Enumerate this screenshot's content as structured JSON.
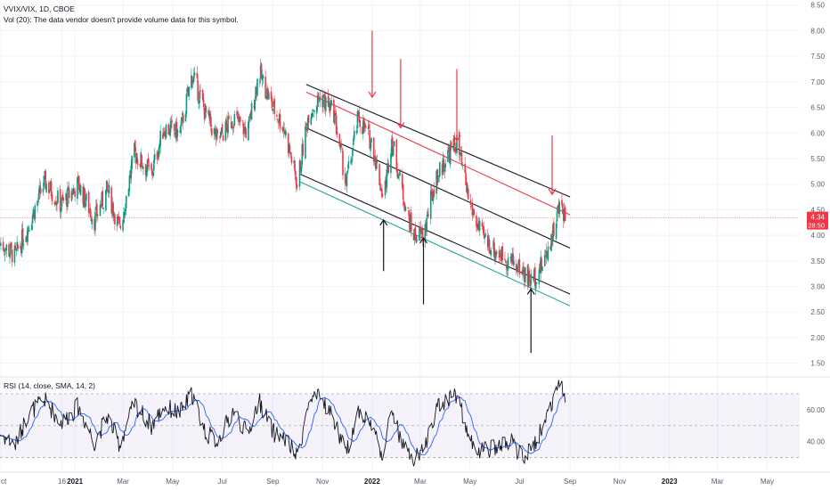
{
  "legend": {
    "symbol": "VVIX/VIX, 1D, CBOE",
    "volume_note": "Vol (20): The data vendor doesn't provide volume data for this symbol.",
    "rsi_label": "RSI (14, close, SMA, 14, 2)"
  },
  "price_badge": {
    "value": "4.34",
    "countdown": "28:50",
    "color": "#f23645"
  },
  "colors": {
    "up": "#089981",
    "down": "#f23645",
    "rsi": "#131722",
    "rsi_ma": "#2962ff",
    "channel": "#131722",
    "channel_red": "#f23645",
    "channel_green": "#26a69a",
    "arrow_red": "#f23645",
    "arrow_black": "#131722",
    "rsi_band": "#7e57c2"
  },
  "chart_data": [
    {
      "type": "candlestick",
      "ylim": [
        1.25,
        8.6
      ],
      "y_ticks": [
        "1.50",
        "2.00",
        "2.50",
        "3.00",
        "3.50",
        "4.00",
        "4.50",
        "5.00",
        "5.50",
        "6.00",
        "6.50",
        "7.00",
        "7.50",
        "8.00",
        "8.50"
      ],
      "y_tick_values": [
        1.5,
        2.0,
        2.5,
        3.0,
        3.5,
        4.0,
        4.5,
        5.0,
        5.5,
        6.0,
        6.5,
        7.0,
        7.5,
        8.0,
        8.5
      ],
      "last_value": 4.34,
      "x_range": [
        "2020-10-01",
        "2023-06-10"
      ],
      "x_ticks": [
        {
          "date": "2020-10-01",
          "label": "ct"
        },
        {
          "date": "2020-12-16",
          "label": "16"
        },
        {
          "date": "2021-01-01",
          "label": "2021",
          "bold": true
        },
        {
          "date": "2021-03-01",
          "label": "Mar"
        },
        {
          "date": "2021-05-01",
          "label": "May"
        },
        {
          "date": "2021-07-01",
          "label": "Jul"
        },
        {
          "date": "2021-09-01",
          "label": "Sep"
        },
        {
          "date": "2021-11-01",
          "label": "Nov"
        },
        {
          "date": "2022-01-01",
          "label": "2022",
          "bold": true
        },
        {
          "date": "2022-03-01",
          "label": "Mar"
        },
        {
          "date": "2022-05-01",
          "label": "May"
        },
        {
          "date": "2022-07-01",
          "label": "Jul"
        },
        {
          "date": "2022-09-01",
          "label": "Sep"
        },
        {
          "date": "2022-11-01",
          "label": "Nov"
        },
        {
          "date": "2023-01-01",
          "label": "2023",
          "bold": true
        },
        {
          "date": "2023-03-01",
          "label": "Mar"
        },
        {
          "date": "2023-05-01",
          "label": "May"
        }
      ],
      "anchors": [
        [
          "2020-10-01",
          3.85
        ],
        [
          "2020-10-20",
          3.6
        ],
        [
          "2020-11-05",
          4.2
        ],
        [
          "2020-11-25",
          5.05
        ],
        [
          "2020-12-15",
          4.6
        ],
        [
          "2021-01-05",
          5.0
        ],
        [
          "2021-01-25",
          4.3
        ],
        [
          "2021-02-10",
          4.9
        ],
        [
          "2021-02-25",
          4.1
        ],
        [
          "2021-03-15",
          5.6
        ],
        [
          "2021-04-05",
          5.2
        ],
        [
          "2021-04-20",
          6.1
        ],
        [
          "2021-05-10",
          6.0
        ],
        [
          "2021-05-25",
          7.15
        ],
        [
          "2021-06-10",
          6.4
        ],
        [
          "2021-06-25",
          5.85
        ],
        [
          "2021-07-15",
          6.3
        ],
        [
          "2021-08-01",
          6.0
        ],
        [
          "2021-08-15",
          7.2
        ],
        [
          "2021-09-01",
          6.5
        ],
        [
          "2021-09-15",
          6.1
        ],
        [
          "2021-10-01",
          5.0
        ],
        [
          "2021-10-15",
          6.4
        ],
        [
          "2021-10-30",
          6.7
        ],
        [
          "2021-11-15",
          6.4
        ],
        [
          "2021-11-30",
          5.0
        ],
        [
          "2021-12-15",
          6.3
        ],
        [
          "2022-01-01",
          5.8
        ],
        [
          "2022-01-15",
          4.7
        ],
        [
          "2022-01-25",
          5.9
        ],
        [
          "2022-02-05",
          5.0
        ],
        [
          "2022-02-20",
          4.0
        ],
        [
          "2022-03-05",
          4.0
        ],
        [
          "2022-03-20",
          5.1
        ],
        [
          "2022-04-05",
          5.6
        ],
        [
          "2022-04-15",
          5.8
        ],
        [
          "2022-05-01",
          4.6
        ],
        [
          "2022-05-15",
          4.0
        ],
        [
          "2022-06-01",
          3.7
        ],
        [
          "2022-06-20",
          3.5
        ],
        [
          "2022-07-05",
          3.3
        ],
        [
          "2022-07-15",
          3.1
        ],
        [
          "2022-07-30",
          3.45
        ],
        [
          "2022-08-10",
          4.0
        ],
        [
          "2022-08-20",
          4.6
        ],
        [
          "2022-08-28",
          4.34
        ]
      ],
      "channel_lines": [
        {
          "role": "upper",
          "color": "channel",
          "from": [
            "2021-10-12",
            6.95
          ],
          "to": [
            "2022-09-01",
            4.75
          ]
        },
        {
          "role": "upper-inner",
          "color": "channel_red",
          "from": [
            "2021-10-12",
            6.8
          ],
          "to": [
            "2022-09-01",
            4.4
          ]
        },
        {
          "role": "middle",
          "color": "channel",
          "from": [
            "2021-10-12",
            6.1
          ],
          "to": [
            "2022-09-01",
            3.75
          ]
        },
        {
          "role": "lower",
          "color": "channel",
          "from": [
            "2021-10-04",
            5.2
          ],
          "to": [
            "2022-09-01",
            2.85
          ]
        },
        {
          "role": "lower-outer",
          "color": "channel_green",
          "from": [
            "2021-10-04",
            5.05
          ],
          "to": [
            "2022-09-01",
            2.62
          ]
        }
      ],
      "arrows": [
        {
          "color": "arrow_red",
          "direction": "down",
          "date": "2022-01-01",
          "from": 8.0,
          "to": 6.7
        },
        {
          "color": "arrow_red",
          "direction": "down",
          "date": "2022-02-05",
          "from": 7.45,
          "to": 6.1
        },
        {
          "color": "arrow_red",
          "direction": "down",
          "date": "2022-04-15",
          "from": 7.25,
          "to": 5.85
        },
        {
          "color": "arrow_red",
          "direction": "down",
          "date": "2022-08-10",
          "from": 5.95,
          "to": 4.8
        },
        {
          "color": "arrow_black",
          "direction": "up",
          "date": "2022-01-15",
          "from": 3.3,
          "to": 4.3
        },
        {
          "color": "arrow_black",
          "direction": "up",
          "date": "2022-03-05",
          "from": 2.65,
          "to": 3.95
        },
        {
          "color": "arrow_black",
          "direction": "up",
          "date": "2022-07-15",
          "from": 1.7,
          "to": 2.95
        }
      ]
    },
    {
      "type": "line",
      "name": "RSI (14, close, SMA, 14, 2)",
      "ylim": [
        22,
        80
      ],
      "y_ticks": [
        "40.00",
        "60.00"
      ],
      "y_tick_values": [
        40,
        60
      ],
      "bands": [
        30,
        50,
        70
      ],
      "anchors": [
        [
          "2020-10-01",
          45
        ],
        [
          "2020-10-20",
          38
        ],
        [
          "2020-11-05",
          58
        ],
        [
          "2020-11-25",
          66
        ],
        [
          "2020-12-15",
          52
        ],
        [
          "2021-01-05",
          62
        ],
        [
          "2021-01-25",
          40
        ],
        [
          "2021-02-10",
          56
        ],
        [
          "2021-02-25",
          38
        ],
        [
          "2021-03-15",
          64
        ],
        [
          "2021-04-05",
          50
        ],
        [
          "2021-04-20",
          62
        ],
        [
          "2021-05-10",
          58
        ],
        [
          "2021-05-25",
          70
        ],
        [
          "2021-06-10",
          46
        ],
        [
          "2021-06-25",
          40
        ],
        [
          "2021-07-15",
          60
        ],
        [
          "2021-08-01",
          44
        ],
        [
          "2021-08-15",
          66
        ],
        [
          "2021-09-01",
          46
        ],
        [
          "2021-09-15",
          42
        ],
        [
          "2021-10-01",
          30
        ],
        [
          "2021-10-15",
          64
        ],
        [
          "2021-10-30",
          68
        ],
        [
          "2021-11-15",
          54
        ],
        [
          "2021-11-30",
          32
        ],
        [
          "2021-12-15",
          60
        ],
        [
          "2022-01-01",
          50
        ],
        [
          "2022-01-15",
          30
        ],
        [
          "2022-01-25",
          62
        ],
        [
          "2022-02-05",
          40
        ],
        [
          "2022-02-20",
          28
        ],
        [
          "2022-03-05",
          34
        ],
        [
          "2022-03-20",
          60
        ],
        [
          "2022-04-05",
          68
        ],
        [
          "2022-04-15",
          70
        ],
        [
          "2022-05-01",
          40
        ],
        [
          "2022-05-15",
          34
        ],
        [
          "2022-06-01",
          36
        ],
        [
          "2022-06-20",
          40
        ],
        [
          "2022-07-05",
          30
        ],
        [
          "2022-07-15",
          34
        ],
        [
          "2022-07-30",
          50
        ],
        [
          "2022-08-10",
          66
        ],
        [
          "2022-08-20",
          77
        ],
        [
          "2022-08-28",
          62
        ]
      ]
    }
  ]
}
